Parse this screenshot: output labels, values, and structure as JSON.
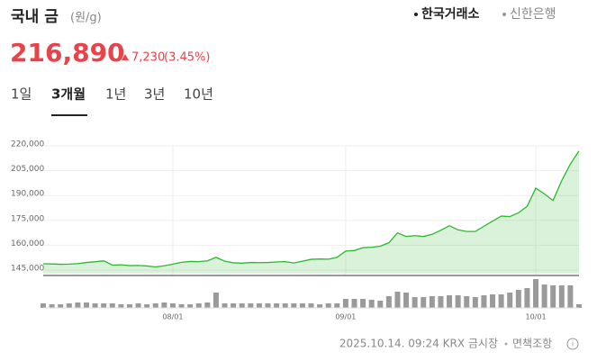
{
  "header": {
    "title": "국내 금",
    "unit": "(원/g)",
    "sources": [
      "한국거래소",
      "신한은행"
    ],
    "price": "216,890",
    "change": "7,230",
    "change_pct": "(3.45%)"
  },
  "tabs": [
    "1일",
    "3개월",
    "1년",
    "3년",
    "10년"
  ],
  "footer": {
    "timestamp": "2025.10.14. 09:24 KRX 금시장",
    "disclaimer": "면책조항"
  },
  "chart_data": {
    "type": "line",
    "categories": [
      null,
      null,
      null,
      null,
      null,
      null,
      null,
      null,
      null,
      null,
      null,
      null,
      null,
      null,
      null,
      "08/01",
      null,
      null,
      null,
      null,
      null,
      null,
      null,
      null,
      null,
      null,
      null,
      null,
      null,
      null,
      null,
      null,
      null,
      null,
      null,
      "09/01",
      null,
      null,
      null,
      null,
      null,
      null,
      null,
      null,
      null,
      null,
      null,
      null,
      null,
      null,
      null,
      null,
      null,
      null,
      null,
      null,
      null,
      "10/01",
      null,
      null,
      null,
      null,
      null
    ],
    "series": [
      {
        "color": "#2db82d",
        "values": [
          148800,
          148700,
          148500,
          148600,
          148900,
          149600,
          150000,
          150600,
          148000,
          148200,
          147700,
          147800,
          147500,
          146900,
          147600,
          148600,
          149700,
          150200,
          150100,
          150600,
          152700,
          150400,
          149400,
          149200,
          149600,
          149500,
          149600,
          149900,
          150100,
          149300,
          150400,
          151500,
          151700,
          151600,
          152700,
          156500,
          156800,
          158500,
          158800,
          159400,
          161500,
          167500,
          165300,
          165800,
          165300,
          166600,
          169000,
          171800,
          169300,
          168300,
          168300,
          171500,
          174600,
          177600,
          177300,
          179600,
          183500,
          194500,
          191000,
          187000,
          199000,
          209000,
          216890
        ]
      }
    ],
    "volume": {
      "color": "#9a9a9a",
      "values": [
        5,
        4,
        4,
        5,
        6,
        6,
        5,
        5,
        5,
        4,
        4,
        5,
        4,
        5,
        6,
        5,
        4,
        4,
        5,
        6,
        17,
        5,
        5,
        5,
        5,
        5,
        5,
        5,
        5,
        5,
        5,
        5,
        4,
        5,
        5,
        10,
        10,
        10,
        9,
        8,
        13,
        18,
        17,
        12,
        12,
        13,
        13,
        14,
        14,
        13,
        12,
        14,
        15,
        15,
        17,
        20,
        22,
        32,
        26,
        25,
        25,
        25,
        4
      ]
    },
    "ylim": [
      143000,
      222500
    ],
    "yticks": [
      {
        "value": 145000,
        "label": "145,000"
      },
      {
        "value": 160000,
        "label": "160,000"
      },
      {
        "value": 175000,
        "label": "175,000"
      },
      {
        "value": 190000,
        "label": "190,000"
      },
      {
        "value": 205000,
        "label": "205,000"
      },
      {
        "value": 220000,
        "label": "220,000"
      }
    ],
    "grid": true
  }
}
